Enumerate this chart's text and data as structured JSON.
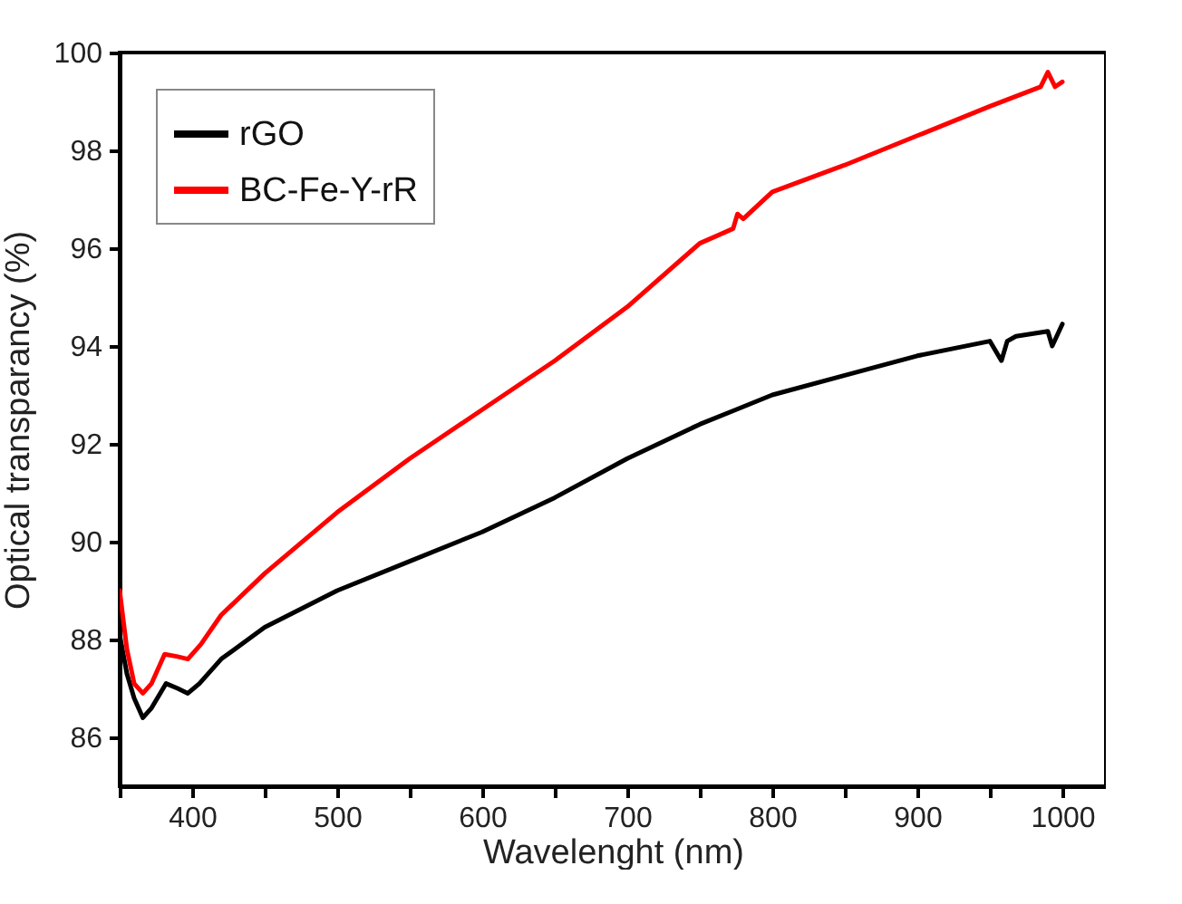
{
  "chart_data": {
    "type": "line",
    "xlabel": "Wavelenght (nm)",
    "ylabel": "Optical transparancy (%)",
    "xlim": [
      350,
      1030
    ],
    "ylim": [
      85,
      100
    ],
    "xticks": [
      {
        "value": 350,
        "label": null
      },
      400,
      {
        "value": 450,
        "label": null
      },
      500,
      {
        "value": 550,
        "label": null
      },
      600,
      {
        "value": 650,
        "label": null
      },
      700,
      {
        "value": 750,
        "label": null
      },
      800,
      {
        "value": 850,
        "label": null
      },
      900,
      {
        "value": 950,
        "label": null
      },
      1000
    ],
    "yticks": [
      86,
      88,
      90,
      92,
      94,
      96,
      98,
      100
    ],
    "grid": false,
    "legend": "top left",
    "marker": "none",
    "line_style": "solid",
    "series": [
      {
        "name": "rGO",
        "color": "#000000",
        "x": [
          350,
          355,
          360,
          366,
          372,
          382,
          390,
          397,
          405,
          420,
          450,
          500,
          550,
          600,
          650,
          700,
          750,
          775,
          800,
          850,
          900,
          950,
          958,
          962,
          968,
          990,
          993,
          1000
        ],
        "values": [
          88.1,
          87.3,
          86.8,
          86.4,
          86.6,
          87.1,
          87.0,
          86.9,
          87.1,
          87.6,
          88.25,
          89.0,
          89.6,
          90.2,
          90.9,
          91.7,
          92.4,
          92.7,
          93.0,
          93.4,
          93.8,
          94.1,
          93.7,
          94.1,
          94.2,
          94.3,
          94.0,
          94.45
        ]
      },
      {
        "name": "BC-Fe-Y-rR",
        "color": "#ff0000",
        "x": [
          350,
          355,
          360,
          366,
          372,
          381,
          390,
          397,
          406,
          420,
          450,
          500,
          550,
          600,
          650,
          700,
          750,
          773,
          776,
          780,
          800,
          850,
          900,
          950,
          985,
          990,
          995,
          1000
        ],
        "values": [
          89.0,
          87.8,
          87.1,
          86.9,
          87.1,
          87.7,
          87.65,
          87.6,
          87.9,
          88.5,
          89.35,
          90.6,
          91.7,
          92.7,
          93.7,
          94.8,
          96.1,
          96.4,
          96.7,
          96.6,
          97.15,
          97.7,
          98.3,
          98.9,
          99.3,
          99.6,
          99.3,
          99.4
        ]
      }
    ]
  }
}
